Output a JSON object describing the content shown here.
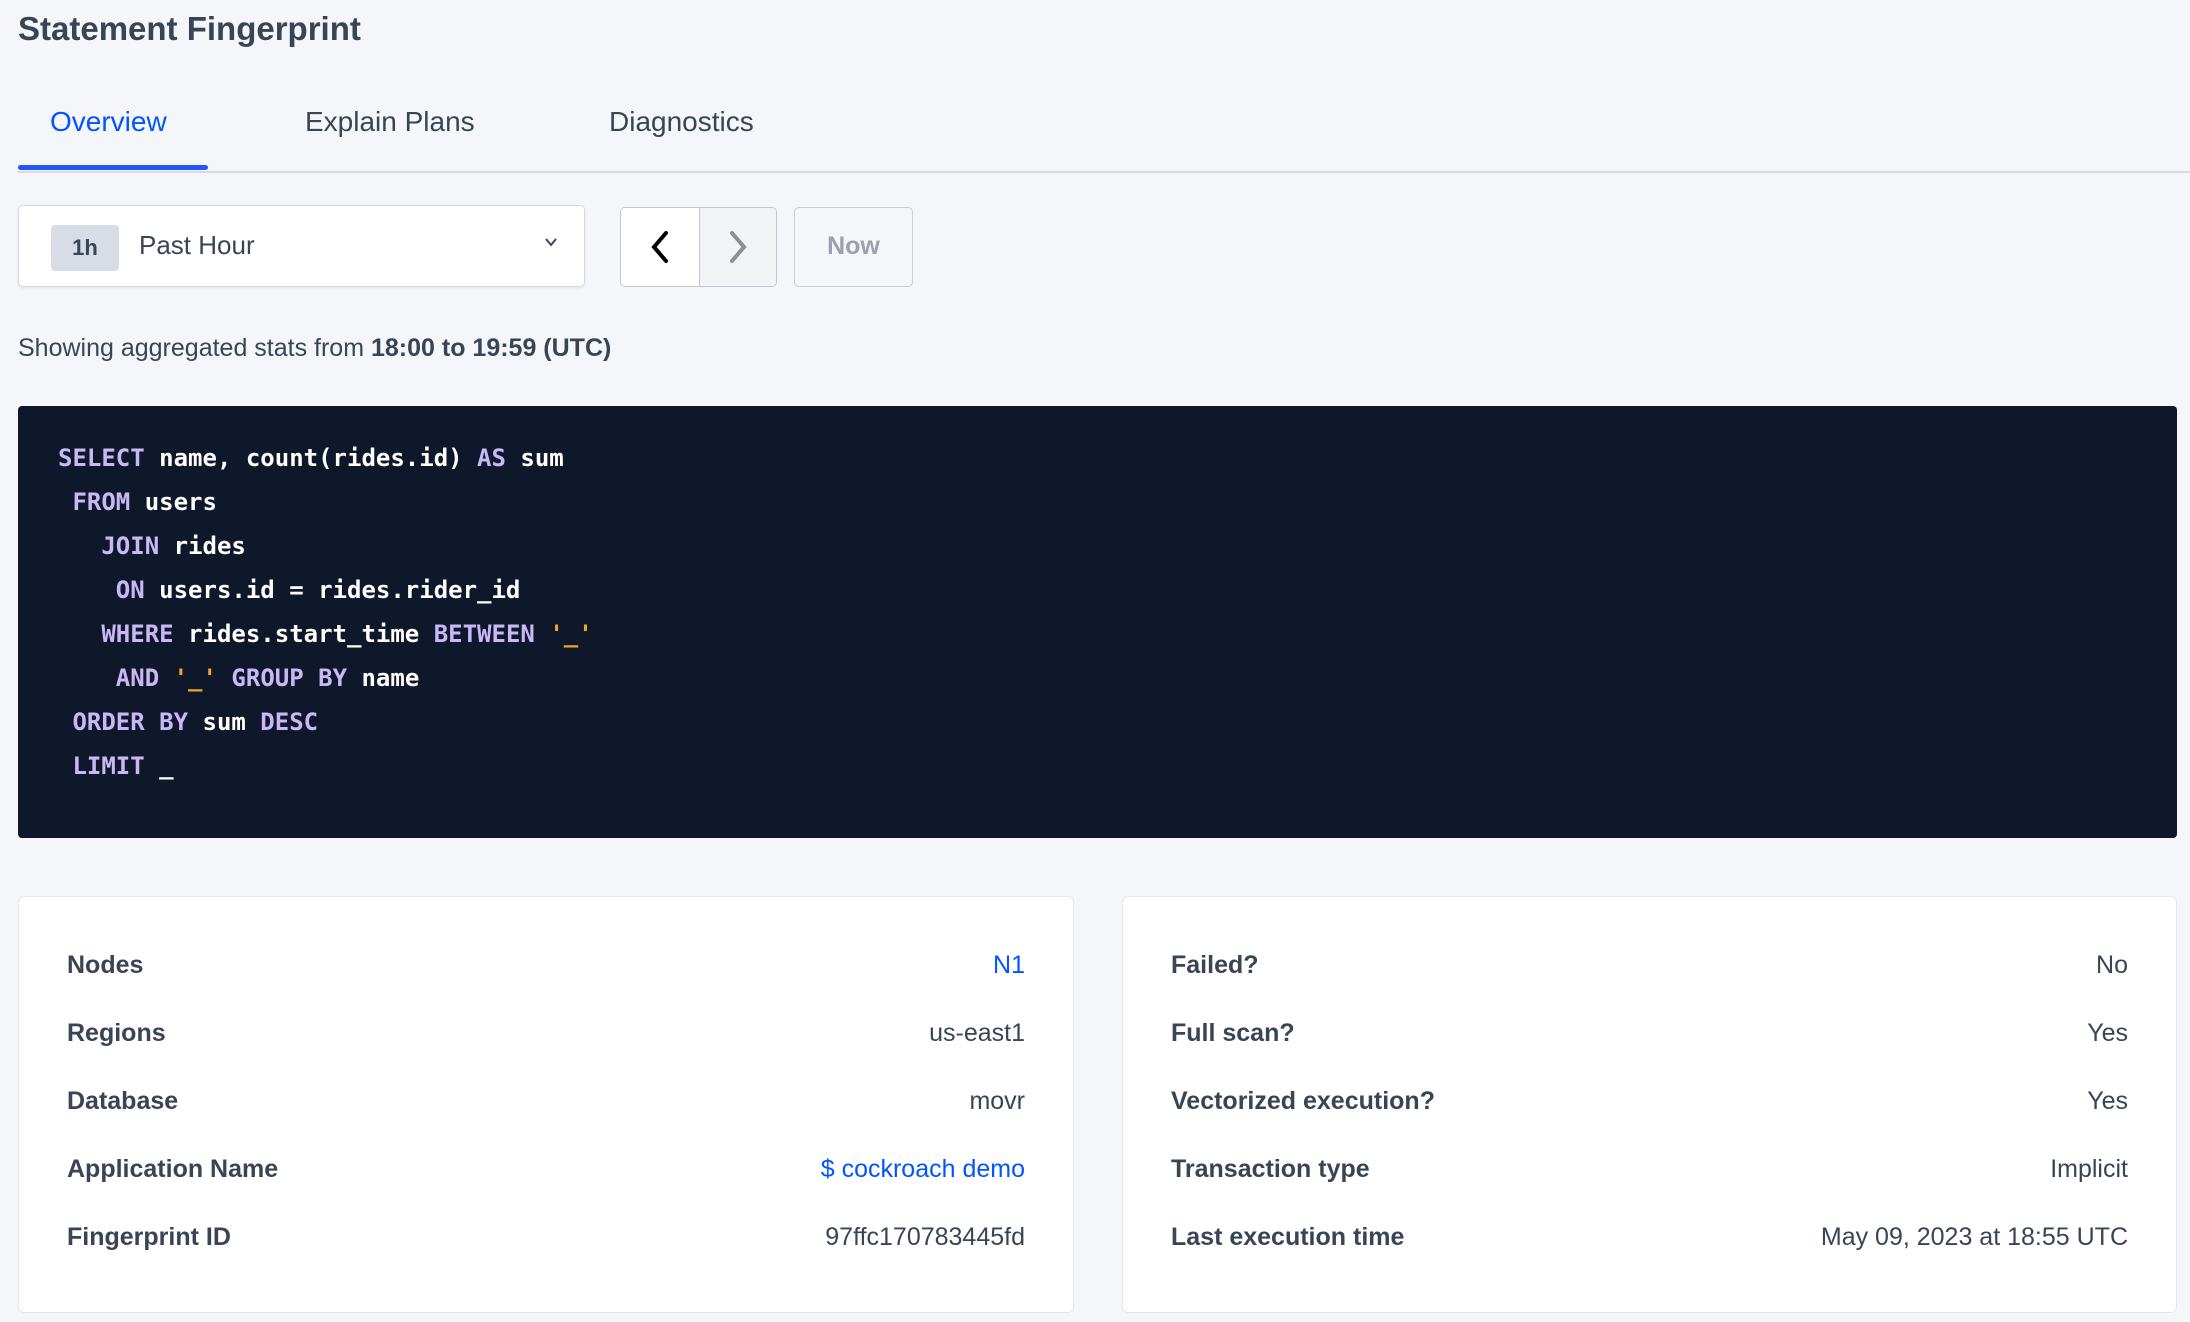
{
  "page_title": "Statement Fingerprint",
  "tabs": [
    {
      "label": "Overview",
      "active": true
    },
    {
      "label": "Explain Plans",
      "active": false
    },
    {
      "label": "Diagnostics",
      "active": false
    }
  ],
  "time_picker": {
    "badge": "1h",
    "selected": "Past Hour",
    "now_label": "Now"
  },
  "info": {
    "prefix": "Showing aggregated stats from ",
    "range": "18:00 to 19:59 (UTC)"
  },
  "sql": [
    [
      {
        "t": "SELECT",
        "k": "kw"
      },
      {
        "t": " name, count(rides.id) "
      },
      {
        "t": "AS",
        "k": "kw"
      },
      {
        "t": " sum"
      }
    ],
    [
      {
        "t": " "
      },
      {
        "t": "FROM",
        "k": "kw"
      },
      {
        "t": " users"
      }
    ],
    [
      {
        "t": "   "
      },
      {
        "t": "JOIN",
        "k": "kw"
      },
      {
        "t": " rides"
      }
    ],
    [
      {
        "t": "    "
      },
      {
        "t": "ON",
        "k": "kw"
      },
      {
        "t": " users.id = rides.rider_id"
      }
    ],
    [
      {
        "t": "   "
      },
      {
        "t": "WHERE",
        "k": "kw"
      },
      {
        "t": " rides.start_time "
      },
      {
        "t": "BETWEEN",
        "k": "kw"
      },
      {
        "t": " "
      },
      {
        "t": "'_'",
        "k": "str"
      }
    ],
    [
      {
        "t": "    "
      },
      {
        "t": "AND",
        "k": "kw"
      },
      {
        "t": " "
      },
      {
        "t": "'_'",
        "k": "str"
      },
      {
        "t": " "
      },
      {
        "t": "GROUP BY",
        "k": "kw"
      },
      {
        "t": " name"
      }
    ],
    [
      {
        "t": " "
      },
      {
        "t": "ORDER BY",
        "k": "kw"
      },
      {
        "t": " sum "
      },
      {
        "t": "DESC",
        "k": "kw"
      }
    ],
    [
      {
        "t": " "
      },
      {
        "t": "LIMIT",
        "k": "kw"
      },
      {
        "t": " _"
      }
    ]
  ],
  "left_card": [
    {
      "label": "Nodes",
      "value": "N1",
      "link": true
    },
    {
      "label": "Regions",
      "value": "us-east1",
      "link": false
    },
    {
      "label": "Database",
      "value": "movr",
      "link": false
    },
    {
      "label": "Application Name",
      "value": "$ cockroach demo",
      "link": true
    },
    {
      "label": "Fingerprint ID",
      "value": "97ffc170783445fd",
      "link": false
    }
  ],
  "right_card": [
    {
      "label": "Failed?",
      "value": "No"
    },
    {
      "label": "Full scan?",
      "value": "Yes"
    },
    {
      "label": "Vectorized execution?",
      "value": "Yes"
    },
    {
      "label": "Transaction type",
      "value": "Implicit"
    },
    {
      "label": "Last execution time",
      "value": "May 09, 2023 at 18:55 UTC"
    }
  ],
  "colors": {
    "accent": "#0055ff",
    "code_bg": "#0f172a",
    "keyword": "#c9b8f5",
    "string": "#f5a524",
    "text": "#394455"
  }
}
